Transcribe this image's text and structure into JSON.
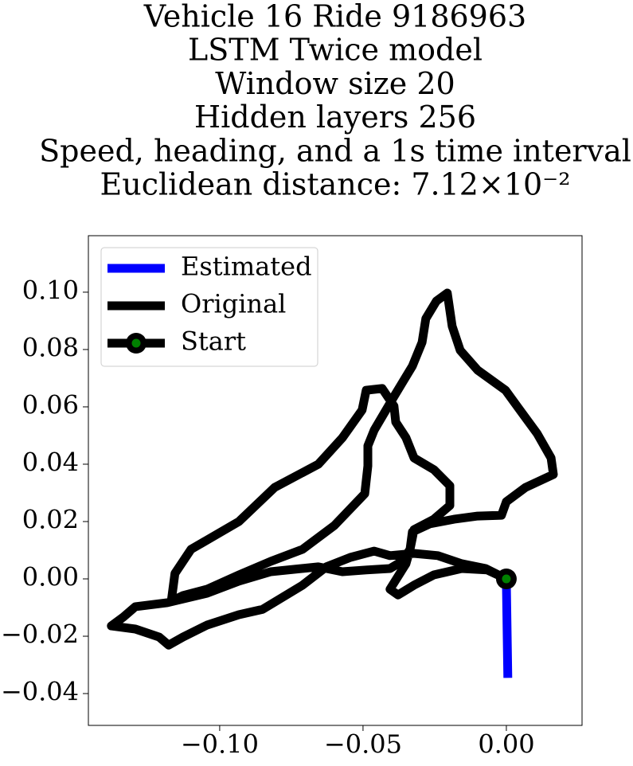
{
  "chart_data": {
    "type": "line",
    "title": [
      "Vehicle 16 Ride 9186963",
      "LSTM Twice model",
      "Window size 20",
      "Hidden layers 256",
      "Speed, heading, and a 1s time interval",
      "Euclidean distance: 7.12×10⁻²"
    ],
    "xlim": [
      -0.1458,
      0.0264
    ],
    "ylim": [
      -0.0511,
      0.1197
    ],
    "xticks": [
      {
        "value": -0.1,
        "label": "−0.10"
      },
      {
        "value": -0.05,
        "label": "−0.05"
      },
      {
        "value": 0,
        "label": "0.00"
      }
    ],
    "yticks": [
      {
        "value": -0.04,
        "label": "−0.04"
      },
      {
        "value": -0.02,
        "label": "−0.02"
      },
      {
        "value": 0,
        "label": "0.00"
      },
      {
        "value": 0.02,
        "label": "0.02"
      },
      {
        "value": 0.04,
        "label": "0.04"
      },
      {
        "value": 0.06,
        "label": "0.06"
      },
      {
        "value": 0.08,
        "label": "0.08"
      },
      {
        "value": 0.1,
        "label": "0.10"
      }
    ],
    "legend": "upper left",
    "grid": false,
    "series": [
      {
        "name": "Estimated",
        "color": "blue",
        "x": [
          0,
          0.0005
        ],
        "values": [
          0,
          -0.033
        ]
      },
      {
        "name": "Original",
        "color": "black",
        "x": [
          0,
          -0.0072,
          -0.0156,
          -0.0239,
          -0.0322,
          -0.0406,
          -0.0461,
          -0.0544,
          -0.0628,
          -0.0711,
          -0.085,
          -0.0933,
          -0.1044,
          -0.1128,
          -0.1178,
          -0.1211,
          -0.1294,
          -0.1378,
          -0.1336,
          -0.1294,
          -0.1183,
          -0.1044,
          -0.0933,
          -0.0822,
          -0.0656,
          -0.0572,
          -0.0489,
          -0.0406,
          -0.0364,
          -0.0336,
          -0.0328,
          -0.0267,
          -0.0183,
          -0.01,
          -0.0017,
          0,
          0.0067,
          0.0164,
          0.0156,
          0.0108,
          0.0053,
          -0.0003,
          -0.01,
          -0.0161,
          -0.0189,
          -0.0206,
          -0.0244,
          -0.0281,
          -0.0294,
          -0.0328,
          -0.0392,
          -0.0461,
          -0.0483,
          -0.0483,
          -0.0494,
          -0.06,
          -0.0711,
          -0.0822,
          -0.0933,
          -0.1044,
          -0.1128,
          -0.1169,
          -0.1156,
          -0.11,
          -0.0933,
          -0.0808,
          -0.0656,
          -0.0572,
          -0.0503,
          -0.0489,
          -0.0433,
          -0.0392,
          -0.0386,
          -0.035,
          -0.0322,
          -0.0253,
          -0.0197,
          -0.0197,
          -0.0253,
          -0.0322,
          -0.0336,
          -0.035,
          -0.0406,
          -0.0378,
          -0.0322,
          -0.0253,
          -0.0156,
          -0.0067,
          0
        ],
        "values": [
          0,
          0.0036,
          0.0053,
          0.0081,
          0.0089,
          0.0081,
          0.0097,
          0.0075,
          0.0042,
          -0.0022,
          -0.0106,
          -0.0125,
          -0.0161,
          -0.0203,
          -0.0231,
          -0.0203,
          -0.0175,
          -0.0164,
          -0.0133,
          -0.0097,
          -0.0083,
          -0.005,
          -0.0008,
          0.0025,
          0.0042,
          0.0025,
          0.0031,
          0.0036,
          0.0061,
          0.0103,
          0.0164,
          0.0192,
          0.0208,
          0.0219,
          0.0222,
          0.0269,
          0.0319,
          0.0364,
          0.0422,
          0.0506,
          0.0581,
          0.0658,
          0.0728,
          0.0797,
          0.0881,
          0.0997,
          0.0969,
          0.0908,
          0.0825,
          0.0742,
          0.0636,
          0.0519,
          0.0464,
          0.0394,
          0.0297,
          0.0186,
          0.0103,
          0.0061,
          0.0014,
          -0.0036,
          -0.0058,
          -0.0078,
          0.0019,
          0.0103,
          0.02,
          0.0319,
          0.04,
          0.0492,
          0.0589,
          0.0658,
          0.0664,
          0.0603,
          0.0547,
          0.0492,
          0.0422,
          0.0381,
          0.0325,
          0.0256,
          0.0208,
          0.0172,
          0.0103,
          0.0053,
          -0.0036,
          -0.0056,
          -0.0022,
          0.0014,
          0.0036,
          0.0031,
          0
        ]
      },
      {
        "name": "Start",
        "color": "black",
        "marker_face_color": "green",
        "x": [
          0
        ],
        "values": [
          0
        ]
      }
    ]
  }
}
